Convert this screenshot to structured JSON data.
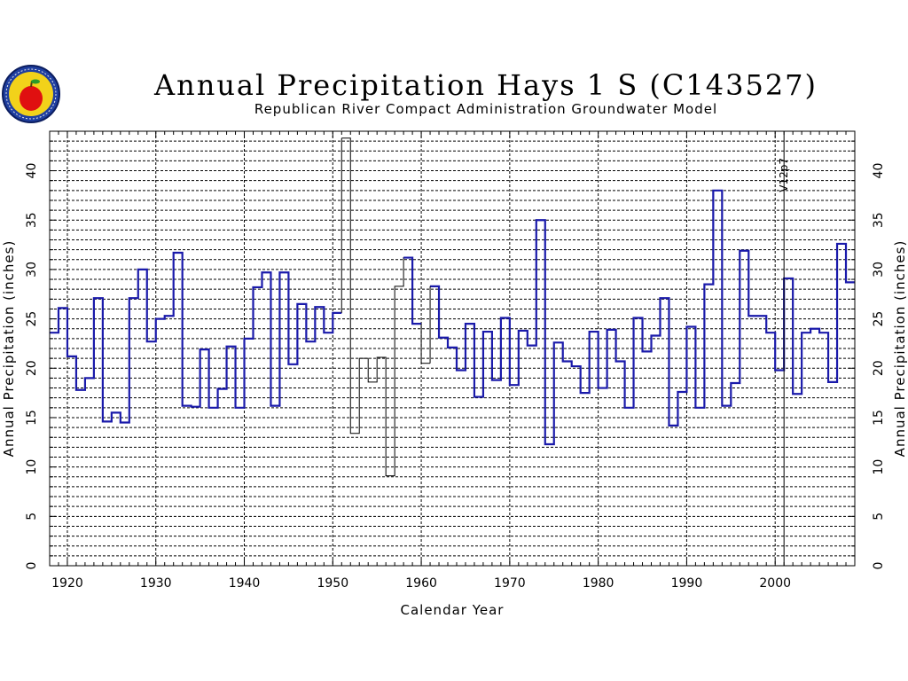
{
  "chart_data": {
    "type": "line",
    "step": true,
    "title": "Annual Precipitation Hays 1 S (C143527)",
    "subtitle": "Republican River Compact Administration Groundwater Model",
    "xlabel": "Calendar Year",
    "ylabel": "Annual Precipitation (inches)",
    "xlim": [
      1918,
      2009
    ],
    "ylim": [
      0,
      44
    ],
    "x_ticks": [
      1920,
      1930,
      1940,
      1950,
      1960,
      1970,
      1980,
      1990,
      2000
    ],
    "y_ticks": [
      0,
      5,
      10,
      15,
      20,
      25,
      30,
      35,
      40
    ],
    "grid": true,
    "annotation": {
      "x": 2001,
      "label": "V12p7"
    },
    "colors": {
      "observed": "#1a1aaa",
      "estimated": "#000000",
      "grid": "#000000"
    },
    "series": [
      {
        "kind": "observed",
        "x": [
          1918,
          1919,
          1920,
          1921,
          1922,
          1923,
          1924,
          1925,
          1926,
          1927,
          1928,
          1929,
          1930,
          1931,
          1932,
          1933,
          1934,
          1935,
          1936,
          1937,
          1938,
          1939,
          1940,
          1941,
          1942,
          1943,
          1944,
          1945,
          1946,
          1947,
          1948,
          1949,
          1950
        ],
        "values": [
          23.6,
          26.1,
          21.2,
          17.8,
          19.0,
          27.1,
          14.6,
          15.5,
          14.5,
          27.1,
          30.0,
          22.7,
          25.0,
          25.3,
          31.7,
          16.2,
          16.1,
          21.9,
          16.0,
          17.9,
          22.2,
          16.0,
          23.0,
          28.2,
          29.7,
          16.2,
          29.7,
          20.4,
          26.5,
          22.7,
          26.2,
          23.6,
          25.6
        ]
      },
      {
        "kind": "estimated",
        "x": [
          1951,
          1952,
          1953,
          1954,
          1955,
          1956,
          1957,
          1958
        ],
        "values": [
          43.3,
          13.4,
          21.0,
          18.6,
          21.1,
          9.1,
          28.3,
          31.2
        ]
      },
      {
        "kind": "observed",
        "x": [
          1958,
          1959
        ],
        "values": [
          31.2,
          24.5
        ]
      },
      {
        "kind": "estimated",
        "x": [
          1960
        ],
        "values": [
          20.5
        ]
      },
      {
        "kind": "observed",
        "x": [
          1961,
          1962,
          1963,
          1964,
          1965,
          1966,
          1967,
          1968,
          1969,
          1970,
          1971,
          1972,
          1973,
          1974,
          1975,
          1976,
          1977,
          1978,
          1979,
          1980,
          1981,
          1982,
          1983,
          1984,
          1985,
          1986,
          1987,
          1988,
          1989,
          1990,
          1991,
          1992,
          1993,
          1994,
          1995,
          1996,
          1997,
          1998,
          1999,
          2000,
          2001,
          2002,
          2003,
          2004,
          2005,
          2006,
          2007,
          2008
        ],
        "values": [
          28.3,
          23.1,
          22.1,
          19.8,
          24.5,
          17.1,
          23.7,
          18.8,
          25.1,
          18.3,
          23.8,
          22.3,
          35.0,
          12.3,
          22.6,
          20.7,
          20.2,
          17.5,
          23.7,
          18.0,
          23.9,
          20.7,
          16.0,
          25.1,
          21.7,
          23.3,
          27.1,
          14.2,
          17.6,
          24.2,
          16.0,
          28.5,
          38.0,
          16.2,
          18.5,
          31.9,
          25.3,
          25.3,
          23.6,
          19.8,
          29.1,
          17.4,
          23.6,
          24.0,
          23.6,
          18.6,
          32.6,
          28.7
        ]
      }
    ]
  }
}
